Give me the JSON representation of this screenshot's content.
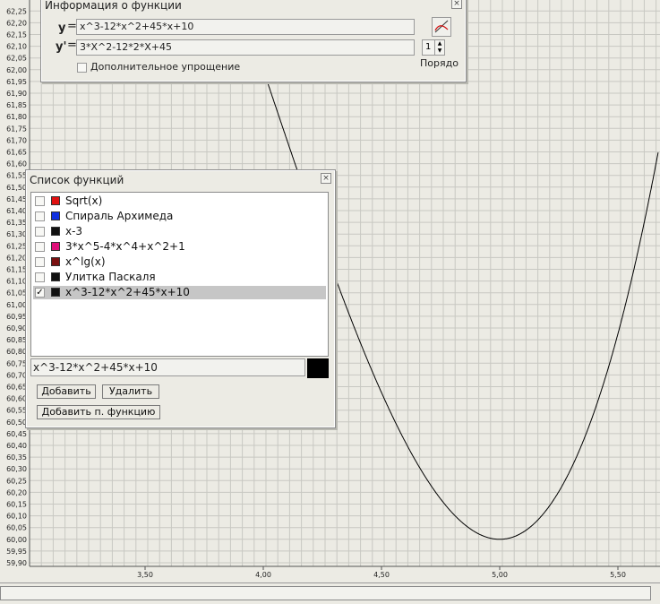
{
  "plot": {
    "y_ticks": [
      "62,25",
      "62,20",
      "62,15",
      "62,10",
      "62,05",
      "62,00",
      "61,95",
      "61,90",
      "61,85",
      "61,80",
      "61,75",
      "61,70",
      "61,65",
      "61,60",
      "61,55",
      "61,50",
      "61,45",
      "61,40",
      "61,35",
      "61,30",
      "61,25",
      "61,20",
      "61,15",
      "61,10",
      "61,05",
      "61,00",
      "60,95",
      "60,90",
      "60,85",
      "60,80",
      "60,75",
      "60,70",
      "60,65",
      "60,60",
      "60,55",
      "60,50",
      "60,45",
      "60,40",
      "60,35",
      "60,30",
      "60,25",
      "60,20",
      "60,15",
      "60,10",
      "60,05",
      "60,00",
      "59,95",
      "59,90"
    ],
    "x_ticks": [
      "3,50",
      "4,00",
      "4,50",
      "5,00",
      "5,50"
    ],
    "x_tick_values": [
      3.5,
      4.0,
      4.5,
      5.0,
      5.5
    ],
    "y_range": [
      59.9,
      62.25
    ],
    "x_range_visible": [
      3.0,
      5.67
    ],
    "curve_expr": "x^3-12*x^2+45*x+10",
    "curve_color": "#000000",
    "grid_color": "#c8c8c2",
    "background": "#ecebe4"
  },
  "info_window": {
    "title": "Информация о функции",
    "y_label": "y",
    "eq": "=",
    "y_value": "x^3-12*x^2+45*x+10",
    "dy_label": "y'",
    "dy_value": "3*X^2-12*2*X+45",
    "order_value": "1",
    "order_label": "Порядо",
    "simplify_label": "Дополнительное упрощение",
    "graph_icon": "graph-icon",
    "close_icon": "close-icon"
  },
  "list_window": {
    "title": "Список функций",
    "functions": [
      {
        "name": "Sqrt(x)",
        "color": "#e01010",
        "checked": false
      },
      {
        "name": "Спираль Архимеда",
        "color": "#1030e0",
        "checked": false
      },
      {
        "name": "x-3",
        "color": "#111111",
        "checked": false
      },
      {
        "name": "3*x^5-4*x^4+x^2+1",
        "color": "#e0107a",
        "checked": false
      },
      {
        "name": "x^lg(x)",
        "color": "#7a1010",
        "checked": false
      },
      {
        "name": "Улитка Паскаля",
        "color": "#111111",
        "checked": false
      },
      {
        "name": "x^3-12*x^2+45*x+10",
        "color": "#111111",
        "checked": true
      }
    ],
    "expression": "x^3-12*x^2+45*x+10",
    "current_color": "#000000",
    "add_label": "Добавить",
    "delete_label": "Удалить",
    "add_param_label": "Добавить п. функцию"
  }
}
